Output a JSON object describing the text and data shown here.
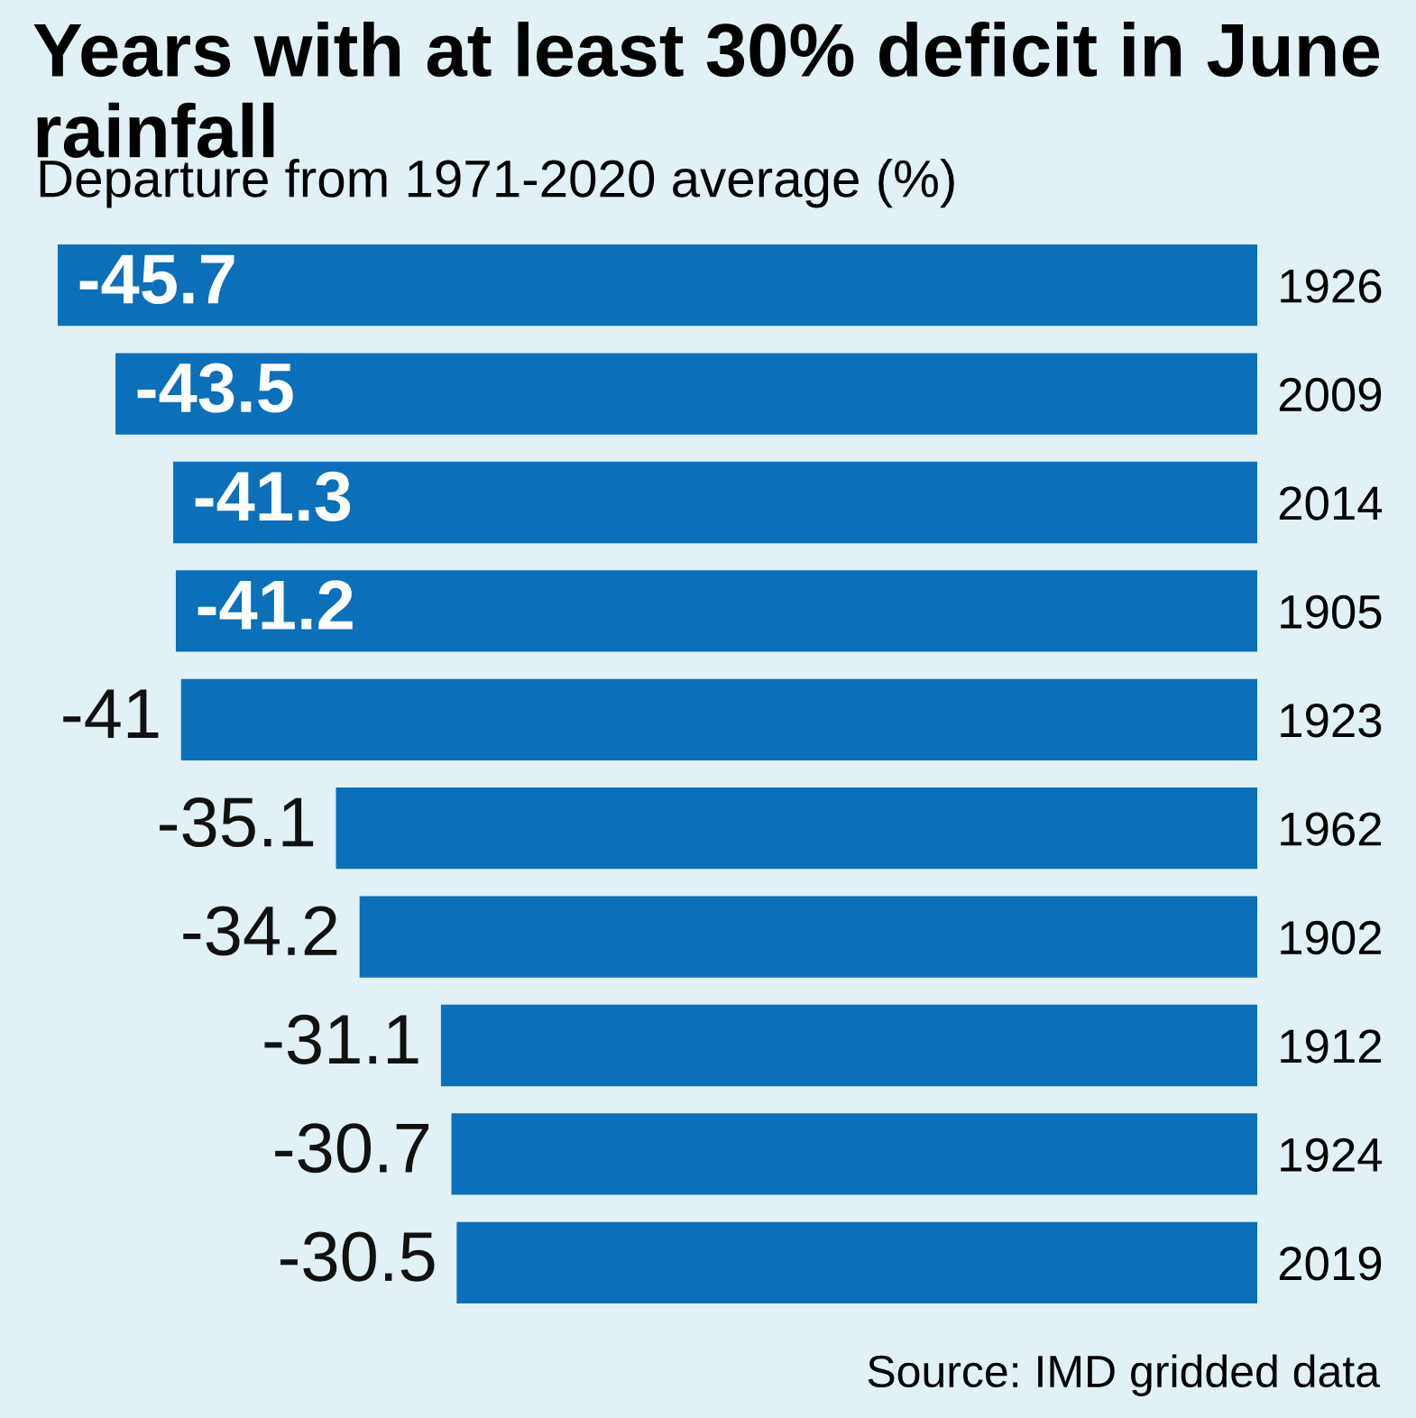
{
  "chart_data": {
    "type": "bar",
    "orientation": "horizontal",
    "title": "Years with at least 30% deficit in June rainfall",
    "subtitle": "Departure from 1971-2020 average (%)",
    "categories": [
      "1926",
      "2009",
      "2014",
      "1905",
      "1923",
      "1962",
      "1902",
      "1912",
      "1924",
      "2019"
    ],
    "values": [
      -45.7,
      -43.5,
      -41.3,
      -41.2,
      -41,
      -35.1,
      -34.2,
      -31.1,
      -30.7,
      -30.5
    ],
    "color": "#0b6fba",
    "xlim": [
      -45.7,
      0
    ],
    "tick_labels": "y",
    "data_labels": true,
    "grid": false,
    "legend": false,
    "annotations": [
      "Source: IMD gridded data"
    ]
  }
}
